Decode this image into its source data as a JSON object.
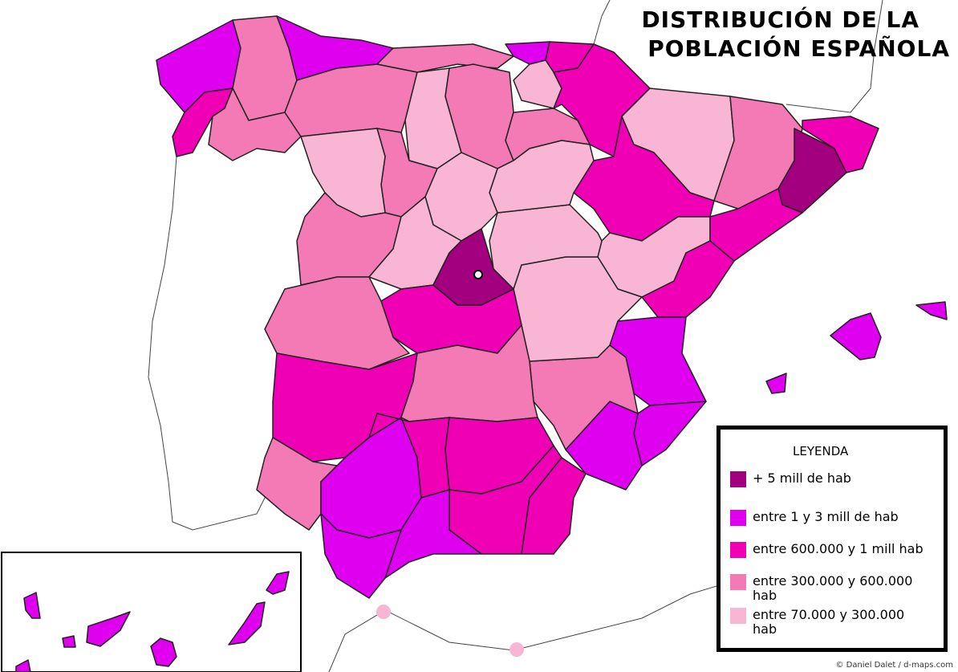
{
  "title": [
    "DISTRIBUCIÓN DE LA",
    "POBLACIÓN ESPAÑOLA"
  ],
  "legend": {
    "title": "LEYENDA",
    "items": [
      {
        "label": "+ 5 mill de hab",
        "color": "#a3007f"
      },
      {
        "label": "entre 1 y 3 mill de hab",
        "color": "#df00ef"
      },
      {
        "label": "entre 600.000 y 1 mill hab",
        "color": "#f000b4"
      },
      {
        "label": "entre 300.000 y 600.000 hab",
        "color": "#f47ab6"
      },
      {
        "label": "entre 70.000 y 300.000 hab",
        "color": "#f8b6d4"
      }
    ]
  },
  "credit": "© Daniel Dalet / d-maps.com"
}
